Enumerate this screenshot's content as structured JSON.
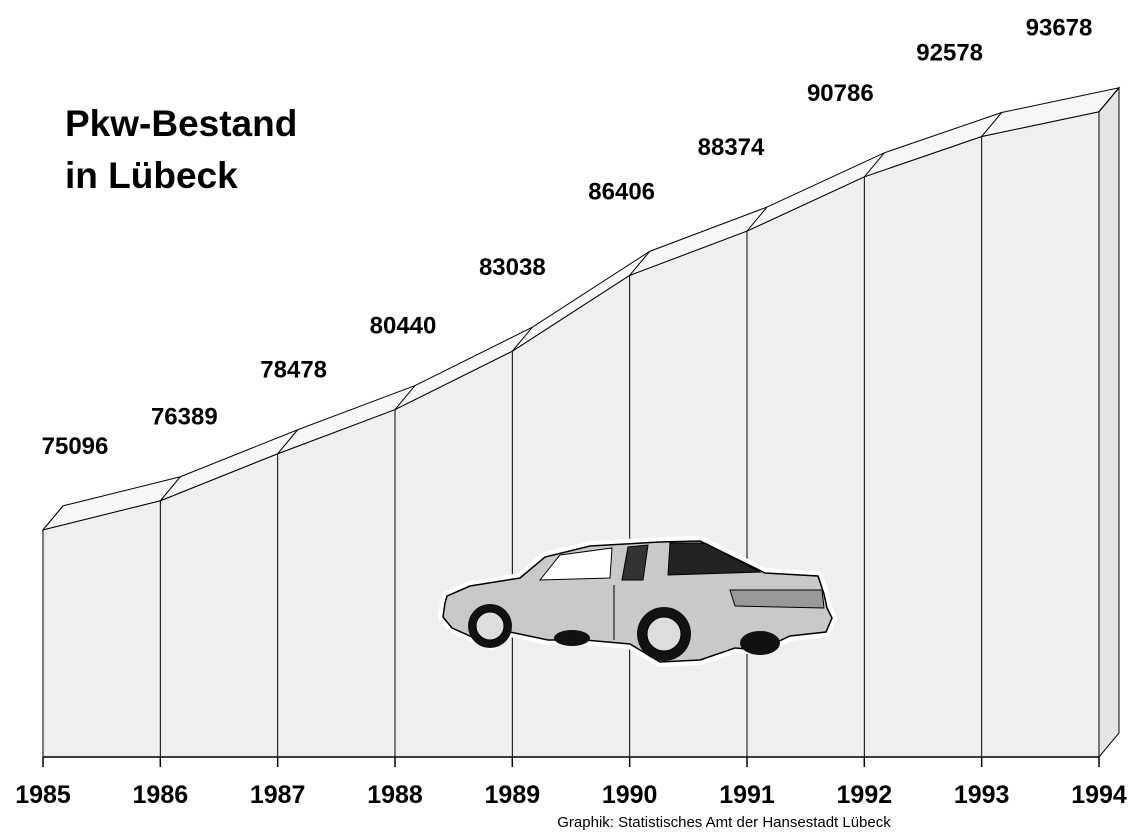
{
  "chart_data": {
    "type": "area3d",
    "title": "Pkw-Bestand in Lübeck",
    "source": "Graphik: Statistisches Amt der Hansestadt Lübeck",
    "categories": [
      "1985",
      "1986",
      "1987",
      "1988",
      "1989",
      "1990",
      "1991",
      "1992",
      "1993",
      "1994"
    ],
    "values": [
      75096,
      76389,
      78478,
      80440,
      83038,
      86406,
      88374,
      90786,
      92578,
      93678
    ],
    "ylim": [
      65000,
      95000
    ],
    "color": "#efefef"
  }
}
